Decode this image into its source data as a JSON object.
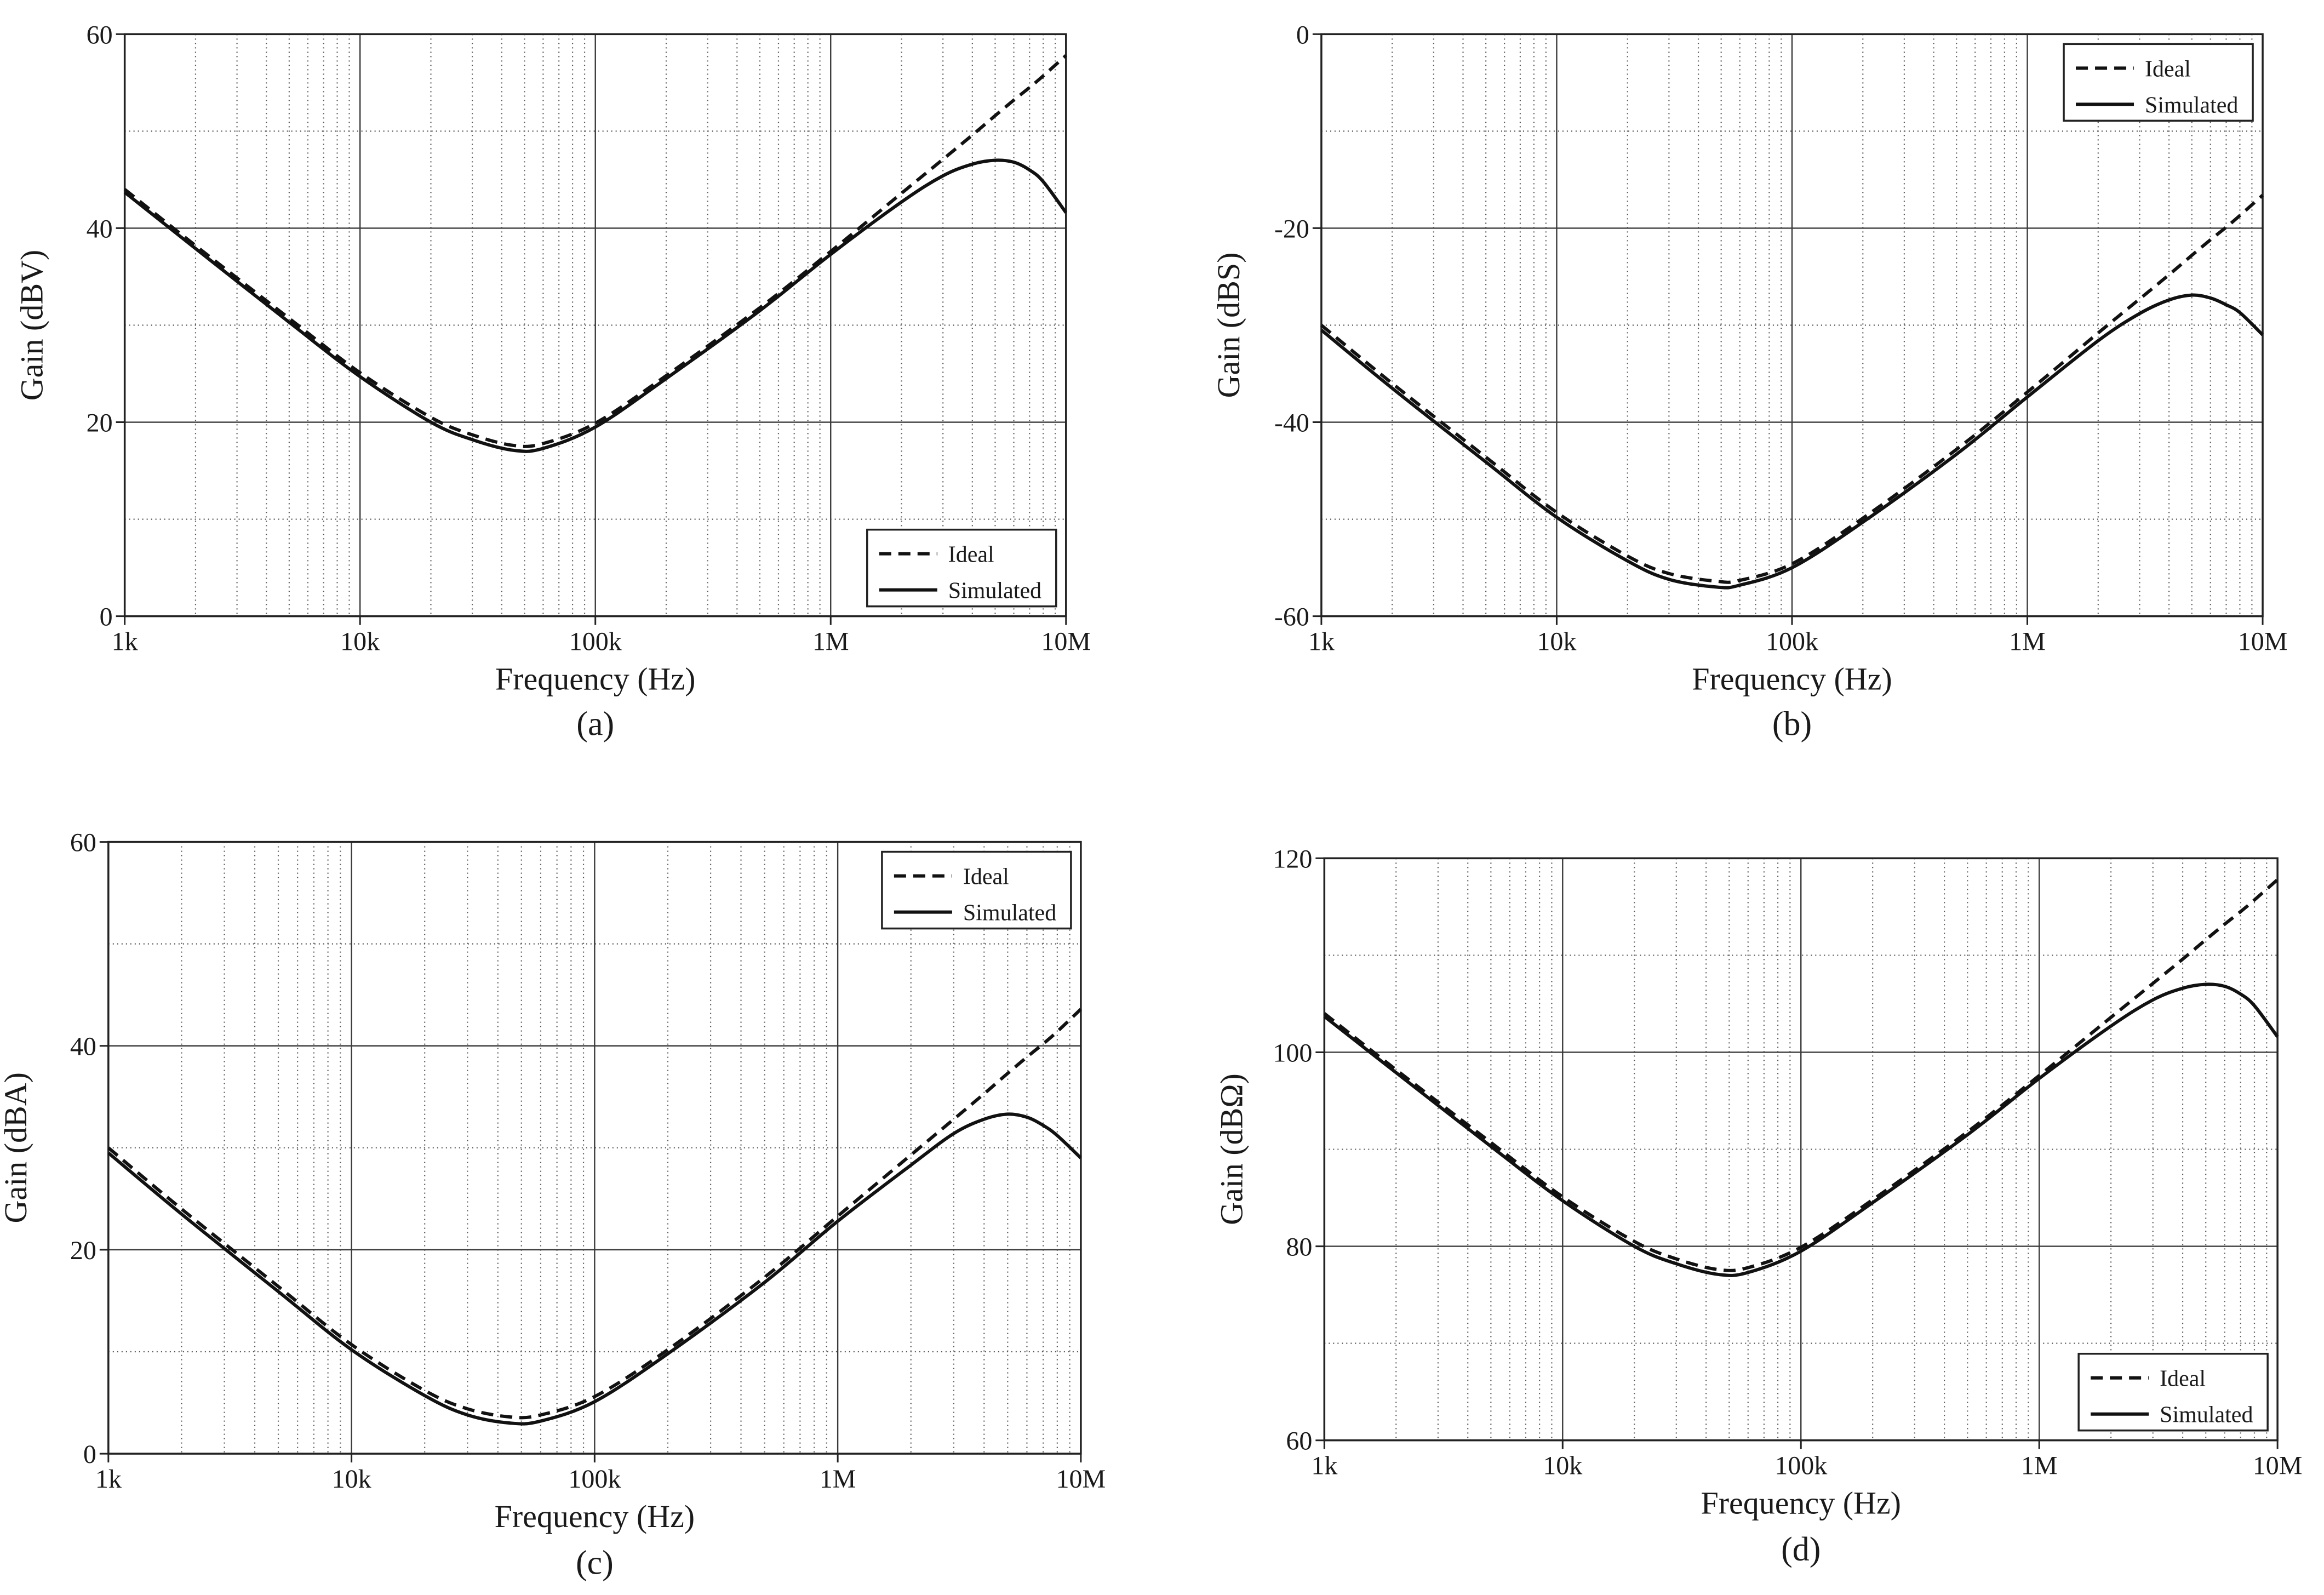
{
  "chart_data": [
    {
      "type": "line",
      "panel_label": "(a)",
      "xlabel": "Frequency (Hz)",
      "ylabel": "Gain (dBV)",
      "xscale": "log",
      "xlim": [
        1000,
        10000000
      ],
      "ylim": [
        0,
        60
      ],
      "xticks": [
        1000,
        10000,
        100000,
        1000000,
        10000000
      ],
      "xtick_labels": [
        "1k",
        "10k",
        "100k",
        "1M",
        "10M"
      ],
      "yticks": [
        0,
        20,
        40,
        60
      ],
      "ytick_labels": [
        "0",
        "20",
        "40",
        "60"
      ],
      "grid": true,
      "legend_position": "bottom-right",
      "x": [
        1000,
        2000,
        5000,
        10000,
        20000,
        30000,
        45000,
        60000,
        100000,
        200000,
        500000,
        1000000,
        2000000,
        3000000,
        4000000,
        5000000,
        6000000,
        7000000,
        8000000,
        10000000
      ],
      "series": [
        {
          "name": "Ideal",
          "style": "dashed",
          "values": [
            44.0,
            38.2,
            30.7,
            25.1,
            20.5,
            18.7,
            17.6,
            17.8,
            19.9,
            24.8,
            31.8,
            37.6,
            43.6,
            47.1,
            49.6,
            51.6,
            53.2,
            54.5,
            55.7,
            57.8
          ]
        },
        {
          "name": "Simulated",
          "style": "solid",
          "values": [
            43.7,
            37.9,
            30.3,
            24.7,
            20.0,
            18.2,
            17.1,
            17.3,
            19.5,
            24.5,
            31.5,
            37.3,
            42.7,
            45.4,
            46.6,
            47.0,
            46.8,
            46.0,
            44.8,
            41.6
          ]
        }
      ]
    },
    {
      "type": "line",
      "panel_label": "(b)",
      "xlabel": "Frequency (Hz)",
      "ylabel": "Gain (dBS)",
      "xscale": "log",
      "xlim": [
        1000,
        10000000
      ],
      "ylim": [
        -60,
        0
      ],
      "xticks": [
        1000,
        10000,
        100000,
        1000000,
        10000000
      ],
      "xtick_labels": [
        "1k",
        "10k",
        "100k",
        "1M",
        "10M"
      ],
      "yticks": [
        -60,
        -40,
        -20,
        0
      ],
      "ytick_labels": [
        "-60",
        "-40",
        "-20",
        "0"
      ],
      "grid": true,
      "legend_position": "top-right",
      "x": [
        1000,
        2000,
        5000,
        10000,
        20000,
        30000,
        48000,
        60000,
        100000,
        200000,
        500000,
        1000000,
        2000000,
        3000000,
        4000000,
        5000000,
        6000000,
        7000000,
        8000000,
        10000000
      ],
      "series": [
        {
          "name": "Ideal",
          "style": "dashed",
          "values": [
            -30.0,
            -36.0,
            -43.6,
            -49.3,
            -53.8,
            -55.6,
            -56.4,
            -56.3,
            -54.6,
            -49.9,
            -42.8,
            -36.9,
            -30.8,
            -27.3,
            -24.8,
            -22.8,
            -21.2,
            -19.9,
            -18.7,
            -16.6
          ]
        },
        {
          "name": "Simulated",
          "style": "solid",
          "values": [
            -30.5,
            -36.5,
            -44.1,
            -49.8,
            -54.3,
            -56.2,
            -57.0,
            -56.8,
            -55.0,
            -50.3,
            -43.3,
            -37.4,
            -31.6,
            -28.8,
            -27.4,
            -26.9,
            -27.2,
            -27.9,
            -28.7,
            -31.0
          ]
        }
      ]
    },
    {
      "type": "line",
      "panel_label": "(c)",
      "xlabel": "Frequency (Hz)",
      "ylabel": "Gain (dBA)",
      "xscale": "log",
      "xlim": [
        1000,
        10000000
      ],
      "ylim": [
        0,
        60
      ],
      "xticks": [
        1000,
        10000,
        100000,
        1000000,
        10000000
      ],
      "xtick_labels": [
        "1k",
        "10k",
        "100k",
        "1M",
        "10M"
      ],
      "yticks": [
        0,
        20,
        40,
        60
      ],
      "ytick_labels": [
        "0",
        "20",
        "40",
        "60"
      ],
      "grid": true,
      "legend_position": "top-right",
      "x": [
        1000,
        2000,
        5000,
        10000,
        20000,
        30000,
        45000,
        60000,
        100000,
        200000,
        500000,
        1000000,
        2000000,
        3000000,
        4000000,
        5000000,
        6000000,
        7000000,
        8000000,
        10000000
      ],
      "series": [
        {
          "name": "Ideal",
          "style": "dashed",
          "values": [
            30.0,
            24.0,
            16.4,
            10.7,
            6.2,
            4.4,
            3.6,
            3.8,
            5.6,
            10.2,
            17.3,
            23.3,
            29.3,
            32.8,
            35.3,
            37.3,
            38.9,
            40.2,
            41.4,
            43.6
          ]
        },
        {
          "name": "Simulated",
          "style": "solid",
          "values": [
            29.5,
            23.5,
            15.9,
            10.2,
            5.7,
            3.8,
            3.0,
            3.2,
            5.1,
            9.8,
            16.8,
            22.8,
            28.3,
            31.4,
            32.8,
            33.3,
            33.0,
            32.2,
            31.2,
            29.0
          ]
        }
      ]
    },
    {
      "type": "line",
      "panel_label": "(d)",
      "xlabel": "Frequency (Hz)",
      "ylabel": "Gain (dBΩ)",
      "xscale": "log",
      "xlim": [
        1000,
        10000000
      ],
      "ylim": [
        60,
        120
      ],
      "xticks": [
        1000,
        10000,
        100000,
        1000000,
        10000000
      ],
      "xtick_labels": [
        "1k",
        "10k",
        "100k",
        "1M",
        "10M"
      ],
      "yticks": [
        60,
        80,
        100,
        120
      ],
      "ytick_labels": [
        "60",
        "80",
        "100",
        "120"
      ],
      "grid": true,
      "legend_position": "bottom-right",
      "x": [
        1000,
        2000,
        5000,
        10000,
        20000,
        30000,
        45000,
        60000,
        100000,
        200000,
        500000,
        1000000,
        2000000,
        3000000,
        4000000,
        5000000,
        6000000,
        7000000,
        8000000,
        10000000
      ],
      "series": [
        {
          "name": "Ideal",
          "style": "dashed",
          "values": [
            104.0,
            98.2,
            90.7,
            85.1,
            80.5,
            78.7,
            77.6,
            77.8,
            79.9,
            84.8,
            91.8,
            97.6,
            103.6,
            107.1,
            109.6,
            111.6,
            113.2,
            114.5,
            115.7,
            117.8
          ]
        },
        {
          "name": "Simulated",
          "style": "solid",
          "values": [
            103.7,
            97.9,
            90.3,
            84.7,
            80.0,
            78.2,
            77.1,
            77.3,
            79.5,
            84.5,
            91.5,
            97.3,
            102.7,
            105.4,
            106.6,
            107.0,
            106.8,
            106.0,
            104.8,
            101.6
          ]
        }
      ]
    }
  ]
}
